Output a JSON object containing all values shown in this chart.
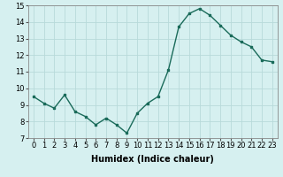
{
  "x": [
    0,
    1,
    2,
    3,
    4,
    5,
    6,
    7,
    8,
    9,
    10,
    11,
    12,
    13,
    14,
    15,
    16,
    17,
    18,
    19,
    20,
    21,
    22,
    23
  ],
  "y": [
    9.5,
    9.1,
    8.8,
    9.6,
    8.6,
    8.3,
    7.8,
    8.2,
    7.8,
    7.3,
    8.5,
    9.1,
    9.5,
    11.1,
    13.7,
    14.5,
    14.8,
    14.4,
    13.8,
    13.2,
    12.8,
    12.5,
    11.7,
    11.6
  ],
  "line_color": "#1a6b5a",
  "marker": "s",
  "marker_size": 2,
  "bg_color": "#d6f0f0",
  "grid_color": "#b8dada",
  "xlabel": "Humidex (Indice chaleur)",
  "ylabel": "",
  "xlim": [
    -0.5,
    23.5
  ],
  "ylim": [
    7,
    15
  ],
  "xticks": [
    0,
    1,
    2,
    3,
    4,
    5,
    6,
    7,
    8,
    9,
    10,
    11,
    12,
    13,
    14,
    15,
    16,
    17,
    18,
    19,
    20,
    21,
    22,
    23
  ],
  "yticks": [
    7,
    8,
    9,
    10,
    11,
    12,
    13,
    14,
    15
  ],
  "tick_fontsize": 6,
  "xlabel_fontsize": 7,
  "line_width": 1.0
}
